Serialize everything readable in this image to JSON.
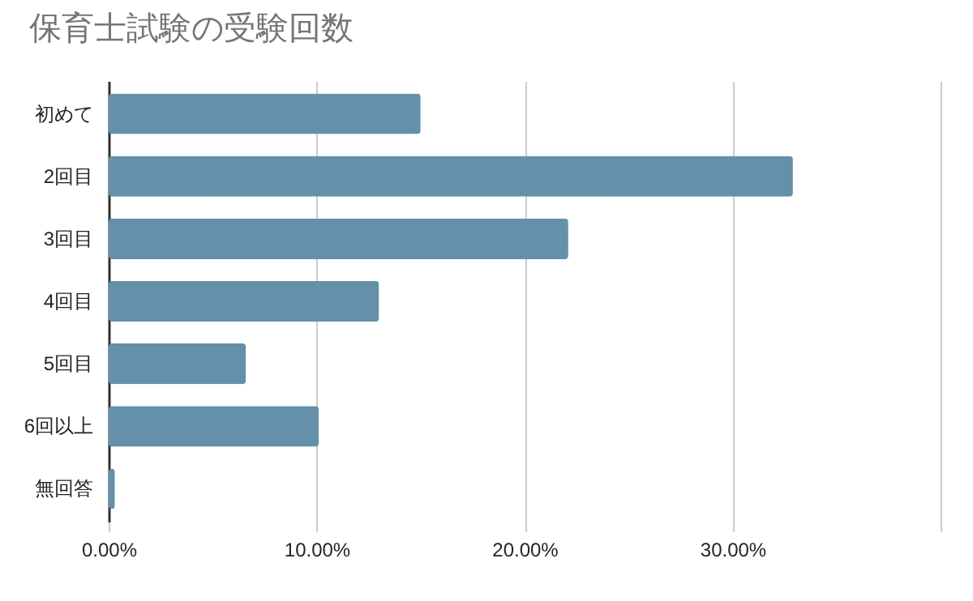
{
  "chart_data": {
    "type": "bar",
    "orientation": "horizontal",
    "title": "保育士試験の受験回数",
    "categories": [
      "初めて",
      "2回目",
      "3回目",
      "4回目",
      "5回目",
      "6回以上",
      "無回答"
    ],
    "values": [
      15.0,
      32.9,
      22.1,
      13.0,
      6.6,
      10.1,
      0.3
    ],
    "color": "#6490aa",
    "xlim": [
      0,
      40
    ],
    "xticks": [
      {
        "value": 0,
        "label": "0.00%"
      },
      {
        "value": 10,
        "label": "10.00%"
      },
      {
        "value": 20,
        "label": "20.00%"
      },
      {
        "value": 30,
        "label": "30.00%"
      },
      {
        "value": 40,
        "label": null
      }
    ],
    "grid": "x"
  }
}
